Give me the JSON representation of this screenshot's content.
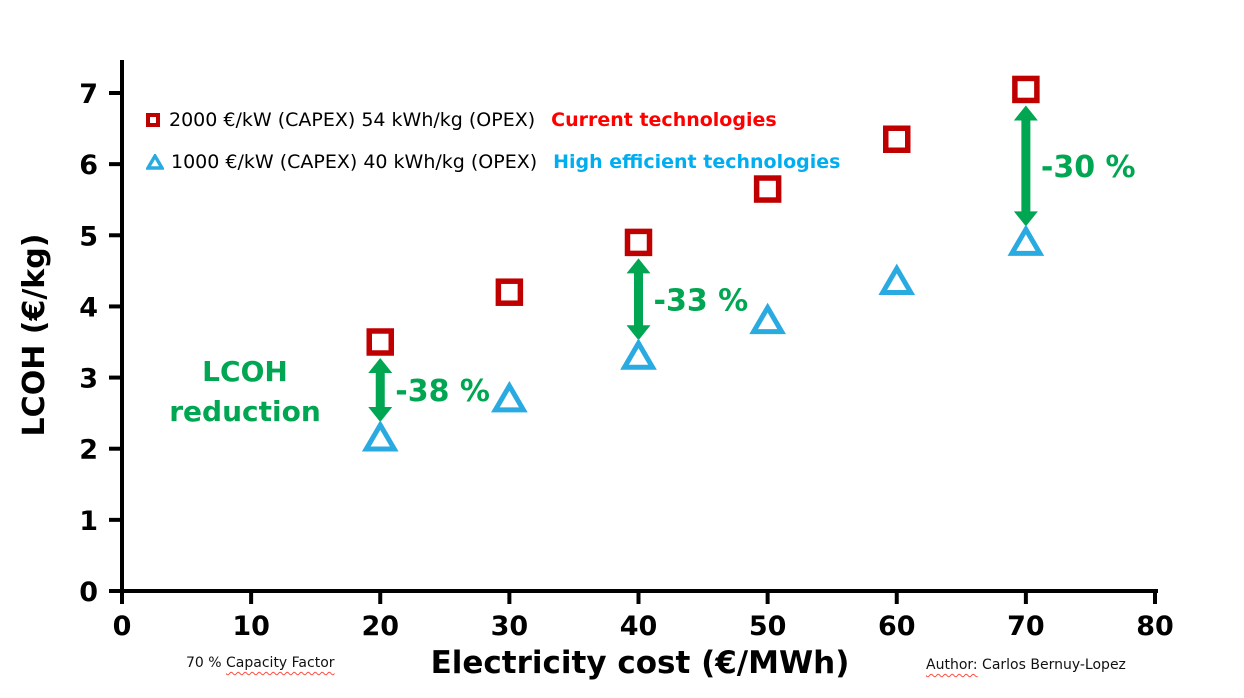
{
  "chart_data": {
    "type": "scatter",
    "title": "",
    "xlabel": "Electricity cost (€/MWh)",
    "ylabel": "LCOH (€/kg)",
    "xlim": [
      0,
      80
    ],
    "ylim": [
      0,
      7
    ],
    "xticks": [
      0,
      10,
      20,
      30,
      40,
      50,
      60,
      70,
      80
    ],
    "yticks": [
      0,
      1,
      2,
      3,
      4,
      5,
      6,
      7
    ],
    "grid": false,
    "legend_position": "top-left",
    "x": [
      20,
      30,
      40,
      50,
      60,
      70
    ],
    "series": [
      {
        "name": "Current technologies",
        "capex_opex_label": "2000 €/kW (CAPEX) 54 kWh/kg (OPEX)",
        "marker": "square-outline-icon",
        "color": "#C00000",
        "label_color": "#FF0000",
        "values": [
          3.5,
          4.2,
          4.9,
          5.65,
          6.35,
          7.05
        ]
      },
      {
        "name": "High efficient technologies",
        "capex_opex_label": "1000 €/kW (CAPEX) 40 kWh/kg (OPEX)",
        "marker": "triangle-outline-icon",
        "color": "#29ABE2",
        "label_color": "#00AEEF",
        "values": [
          2.15,
          2.7,
          3.3,
          3.8,
          4.35,
          4.9
        ]
      }
    ],
    "annotations": {
      "arrow_color": "#00A651",
      "reduction_label": {
        "line1": "LCOH",
        "line2": "reduction",
        "color": "#00A651"
      },
      "arrows": [
        {
          "x": 20,
          "label": "-38 %"
        },
        {
          "x": 40,
          "label": "-33 %"
        },
        {
          "x": 70,
          "label": "-30 %"
        }
      ]
    }
  },
  "footnotes": {
    "capacity_factor": {
      "prefix": "70 % ",
      "underlined": "Capacity Factor"
    },
    "author": {
      "underlined": "Author:",
      "rest": " Carlos Bernuy-Lopez"
    }
  }
}
